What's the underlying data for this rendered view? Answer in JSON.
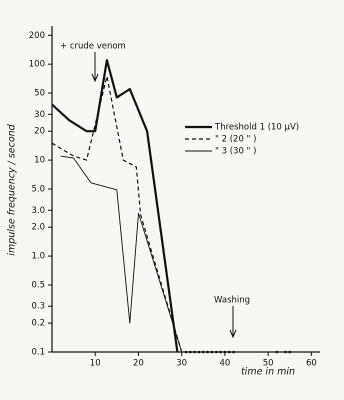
{
  "chart_data": {
    "type": "line",
    "log_y": true,
    "ylabel": "impulse frequency / second",
    "xlabel": "time in min",
    "annotations": [
      "+ crude venom",
      "Washing"
    ],
    "xlim": [
      0,
      62
    ],
    "ylim": [
      0.1,
      250
    ],
    "xticks": [
      10,
      20,
      30,
      40,
      50,
      60
    ],
    "yticks": [
      200,
      100,
      50,
      30,
      20,
      10,
      {
        "value": 5,
        "label": "5.0"
      },
      {
        "value": 3,
        "label": "3.0"
      },
      {
        "value": 2,
        "label": "2.0"
      },
      {
        "value": 1,
        "label": "1.0"
      },
      0.5,
      0.3,
      0.2,
      0.1
    ],
    "series": [
      {
        "name": "Threshold 1 (10 µV)",
        "color": "#111",
        "style": "solid",
        "width": 2.2,
        "x": [
          0,
          4,
          8,
          10,
          12.7,
          15,
          18,
          22,
          29
        ],
        "values": [
          38,
          26,
          20,
          20,
          110,
          45,
          55,
          20,
          0.1
        ]
      },
      {
        "name": "\"     2 (20 \" )",
        "color": "#111",
        "style": "dashed",
        "width": 1.2,
        "x": [
          0,
          5,
          8,
          12.7,
          16.5,
          19.5,
          20.5,
          24,
          30
        ],
        "values": [
          15,
          11,
          10,
          75,
          10,
          8.5,
          2.7,
          0.8,
          0.1
        ]
      },
      {
        "name": "\"     3 (30 \" )",
        "color": "#111",
        "style": "solid",
        "width": 0.9,
        "x": [
          2,
          5,
          9,
          15,
          18,
          20,
          30
        ],
        "values": [
          11,
          10.5,
          5.8,
          4.9,
          0.2,
          2.8,
          0.1
        ]
      },
      {
        "color": "#111",
        "style": "points",
        "x": [
          31,
          32,
          33,
          34,
          35,
          36,
          37,
          38,
          39,
          40,
          41,
          42,
          52,
          54,
          55
        ],
        "values": [
          0.1,
          0.1,
          0.1,
          0.1,
          0.1,
          0.1,
          0.1,
          0.1,
          0.1,
          0.1,
          0.1,
          0.1,
          0.1,
          0.1,
          0.1
        ]
      }
    ]
  }
}
